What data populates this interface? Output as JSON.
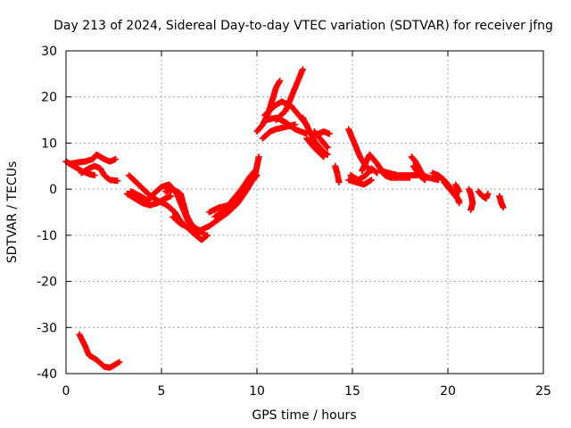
{
  "chart_data": {
    "type": "scatter",
    "title": "Day 213 of 2024, Sidereal Day-to-day VTEC variation (SDTVAR) for receiver jfng",
    "xlabel": "GPS time / hours",
    "ylabel": "SDTVAR / TECUs",
    "xlim": [
      0,
      25
    ],
    "ylim": [
      -40,
      30
    ],
    "xticks": [
      0,
      5,
      10,
      15,
      20,
      25
    ],
    "yticks": [
      -40,
      -30,
      -20,
      -10,
      0,
      10,
      20,
      30
    ],
    "grid": true,
    "marker": "plus",
    "color": "#ff0000",
    "series": [
      {
        "name": "track-1",
        "points": [
          [
            0.0,
            6.0
          ],
          [
            0.4,
            5.0
          ],
          [
            0.8,
            4.0
          ],
          [
            1.2,
            3.3
          ],
          [
            1.5,
            3.0
          ]
        ]
      },
      {
        "name": "track-2",
        "points": [
          [
            0.2,
            5.5
          ],
          [
            0.6,
            5.8
          ],
          [
            1.0,
            6.0
          ],
          [
            1.4,
            6.5
          ],
          [
            1.6,
            7.5
          ],
          [
            1.8,
            7.0
          ],
          [
            2.0,
            6.5
          ],
          [
            2.3,
            6.0
          ],
          [
            2.6,
            6.5
          ]
        ]
      },
      {
        "name": "track-3",
        "points": [
          [
            0.8,
            3.5
          ],
          [
            1.2,
            4.5
          ],
          [
            1.5,
            5.0
          ],
          [
            1.8,
            4.5
          ],
          [
            2.0,
            3.0
          ],
          [
            2.3,
            2.0
          ],
          [
            2.7,
            1.8
          ]
        ]
      },
      {
        "name": "track-4",
        "points": [
          [
            0.7,
            -31.5
          ],
          [
            1.0,
            -34.0
          ],
          [
            1.2,
            -36.0
          ],
          [
            1.6,
            -37.0
          ],
          [
            2.0,
            -38.5
          ],
          [
            2.3,
            -38.7
          ],
          [
            2.8,
            -37.5
          ]
        ]
      },
      {
        "name": "track-5",
        "points": [
          [
            3.3,
            3.0
          ],
          [
            3.8,
            1.0
          ],
          [
            4.3,
            -1.0
          ],
          [
            4.8,
            -2.5
          ],
          [
            5.3,
            -3.5
          ],
          [
            5.7,
            -5.0
          ],
          [
            6.0,
            -7.0
          ],
          [
            6.4,
            -8.5
          ],
          [
            6.8,
            -10.0
          ],
          [
            7.1,
            -11.0
          ],
          [
            7.4,
            -10.0
          ]
        ]
      },
      {
        "name": "track-6",
        "points": [
          [
            3.2,
            -1.0
          ],
          [
            3.6,
            -2.0
          ],
          [
            4.0,
            -3.0
          ],
          [
            4.4,
            -3.5
          ],
          [
            4.8,
            -3.0
          ],
          [
            5.2,
            -2.0
          ],
          [
            5.5,
            -1.5
          ]
        ]
      },
      {
        "name": "track-7",
        "points": [
          [
            3.4,
            -0.5
          ],
          [
            3.9,
            -1.5
          ],
          [
            4.3,
            -2.5
          ],
          [
            4.6,
            -1.0
          ],
          [
            5.0,
            0.5
          ],
          [
            5.4,
            1.0
          ],
          [
            5.8,
            -1.0
          ],
          [
            6.1,
            -4.0
          ],
          [
            6.4,
            -7.0
          ],
          [
            6.8,
            -8.5
          ],
          [
            7.2,
            -9.5
          ]
        ]
      },
      {
        "name": "track-8",
        "points": [
          [
            5.2,
            -0.5
          ],
          [
            5.6,
            0.0
          ],
          [
            6.0,
            -1.0
          ],
          [
            6.3,
            -5.5
          ],
          [
            6.6,
            -8.0
          ],
          [
            7.0,
            -9.5
          ]
        ]
      },
      {
        "name": "track-9",
        "points": [
          [
            5.6,
            -6.0
          ],
          [
            6.0,
            -7.5
          ],
          [
            6.5,
            -8.5
          ],
          [
            7.0,
            -9.0
          ],
          [
            7.5,
            -8.0
          ],
          [
            8.0,
            -6.5
          ],
          [
            8.5,
            -5.0
          ],
          [
            9.0,
            -3.0
          ],
          [
            9.5,
            0.0
          ],
          [
            9.9,
            3.0
          ],
          [
            10.1,
            7.0
          ]
        ]
      },
      {
        "name": "track-10",
        "points": [
          [
            7.5,
            -5.0
          ],
          [
            8.0,
            -4.0
          ],
          [
            8.5,
            -3.5
          ],
          [
            9.0,
            -1.5
          ],
          [
            9.4,
            0.5
          ],
          [
            9.8,
            2.0
          ],
          [
            10.0,
            3.0
          ]
        ]
      },
      {
        "name": "track-11",
        "points": [
          [
            7.8,
            -6.0
          ],
          [
            8.3,
            -4.5
          ],
          [
            8.8,
            -2.0
          ],
          [
            9.2,
            0.0
          ],
          [
            9.6,
            2.5
          ],
          [
            9.9,
            4.0
          ]
        ]
      },
      {
        "name": "track-12",
        "points": [
          [
            10.0,
            12.5
          ],
          [
            10.3,
            14.0
          ],
          [
            10.6,
            16.5
          ],
          [
            11.0,
            22.0
          ],
          [
            11.2,
            23.5
          ]
        ]
      },
      {
        "name": "track-13",
        "points": [
          [
            10.4,
            16.0
          ],
          [
            10.9,
            18.0
          ],
          [
            11.3,
            19.0
          ],
          [
            11.8,
            18.0
          ],
          [
            12.2,
            16.0
          ],
          [
            12.6,
            14.0
          ]
        ]
      },
      {
        "name": "track-14",
        "points": [
          [
            10.5,
            15.0
          ],
          [
            11.0,
            15.5
          ],
          [
            11.5,
            14.5
          ],
          [
            12.0,
            13.0
          ],
          [
            12.6,
            12.0
          ]
        ]
      },
      {
        "name": "track-15",
        "points": [
          [
            11.0,
            15.0
          ],
          [
            11.5,
            17.0
          ],
          [
            12.0,
            22.0
          ],
          [
            12.4,
            26.0
          ]
        ]
      },
      {
        "name": "track-16",
        "points": [
          [
            10.3,
            11.0
          ],
          [
            10.7,
            12.5
          ],
          [
            11.0,
            13.0
          ],
          [
            11.5,
            13.5
          ],
          [
            12.0,
            14.0
          ]
        ]
      },
      {
        "name": "track-17",
        "points": [
          [
            12.4,
            15.5
          ],
          [
            12.7,
            13.0
          ],
          [
            13.0,
            10.5
          ],
          [
            13.4,
            8.5
          ],
          [
            13.7,
            7.5
          ]
        ]
      },
      {
        "name": "track-18",
        "points": [
          [
            12.6,
            11.0
          ],
          [
            13.0,
            9.0
          ],
          [
            13.5,
            7.0
          ]
        ]
      },
      {
        "name": "track-19",
        "points": [
          [
            13.0,
            12.5
          ],
          [
            13.4,
            10.5
          ],
          [
            13.7,
            9.0
          ]
        ]
      },
      {
        "name": "track-20",
        "points": [
          [
            13.2,
            12.0
          ],
          [
            13.5,
            12.5
          ],
          [
            13.8,
            12.0
          ]
        ]
      },
      {
        "name": "track-21",
        "points": [
          [
            14.1,
            5.0
          ],
          [
            14.2,
            3.5
          ],
          [
            14.3,
            1.5
          ]
        ]
      },
      {
        "name": "track-22",
        "points": [
          [
            14.8,
            13.0
          ],
          [
            15.1,
            10.0
          ],
          [
            15.4,
            7.0
          ],
          [
            15.7,
            5.0
          ],
          [
            16.0,
            4.0
          ]
        ]
      },
      {
        "name": "track-23",
        "points": [
          [
            14.9,
            3.0
          ],
          [
            15.3,
            2.0
          ],
          [
            15.7,
            3.0
          ],
          [
            16.0,
            4.5
          ],
          [
            16.3,
            3.5
          ]
        ]
      },
      {
        "name": "track-24",
        "points": [
          [
            14.8,
            2.0
          ],
          [
            15.2,
            1.5
          ],
          [
            15.6,
            1.0
          ],
          [
            16.0,
            2.0
          ]
        ]
      },
      {
        "name": "track-25",
        "points": [
          [
            15.5,
            4.0
          ],
          [
            15.9,
            7.5
          ],
          [
            16.3,
            5.5
          ],
          [
            16.7,
            3.0
          ],
          [
            17.0,
            2.5
          ],
          [
            17.5,
            2.5
          ],
          [
            18.0,
            2.5
          ]
        ]
      },
      {
        "name": "track-26",
        "points": [
          [
            16.5,
            4.0
          ],
          [
            16.9,
            3.5
          ],
          [
            17.4,
            3.0
          ],
          [
            17.9,
            3.0
          ],
          [
            18.4,
            3.0
          ]
        ]
      },
      {
        "name": "track-27",
        "points": [
          [
            18.1,
            7.0
          ],
          [
            18.3,
            6.0
          ],
          [
            18.5,
            4.5
          ],
          [
            18.7,
            3.0
          ],
          [
            19.0,
            2.5
          ],
          [
            19.5,
            2.0
          ]
        ]
      },
      {
        "name": "track-28",
        "points": [
          [
            18.2,
            5.0
          ],
          [
            18.5,
            3.0
          ],
          [
            18.8,
            2.0
          ]
        ]
      },
      {
        "name": "track-29",
        "points": [
          [
            19.2,
            3.5
          ],
          [
            19.5,
            3.0
          ],
          [
            19.8,
            2.0
          ],
          [
            20.1,
            0.5
          ],
          [
            20.4,
            -1.0
          ],
          [
            20.6,
            -3.0
          ]
        ]
      },
      {
        "name": "track-30",
        "points": [
          [
            19.8,
            1.5
          ],
          [
            20.1,
            0.0
          ],
          [
            20.4,
            -1.5
          ],
          [
            20.6,
            -2.5
          ]
        ]
      },
      {
        "name": "track-31",
        "points": [
          [
            20.4,
            1.0
          ],
          [
            20.6,
            -0.5
          ]
        ]
      },
      {
        "name": "track-32",
        "points": [
          [
            21.1,
            0.0
          ],
          [
            21.2,
            -1.0
          ],
          [
            21.3,
            -3.0
          ],
          [
            21.2,
            -4.5
          ]
        ]
      },
      {
        "name": "track-33",
        "points": [
          [
            21.6,
            -0.5
          ],
          [
            21.8,
            -1.5
          ],
          [
            22.0,
            -2.0
          ],
          [
            22.1,
            -1.0
          ]
        ]
      },
      {
        "name": "track-34",
        "points": [
          [
            22.7,
            -1.5
          ],
          [
            22.8,
            -3.0
          ],
          [
            22.9,
            -4.0
          ]
        ]
      }
    ]
  }
}
